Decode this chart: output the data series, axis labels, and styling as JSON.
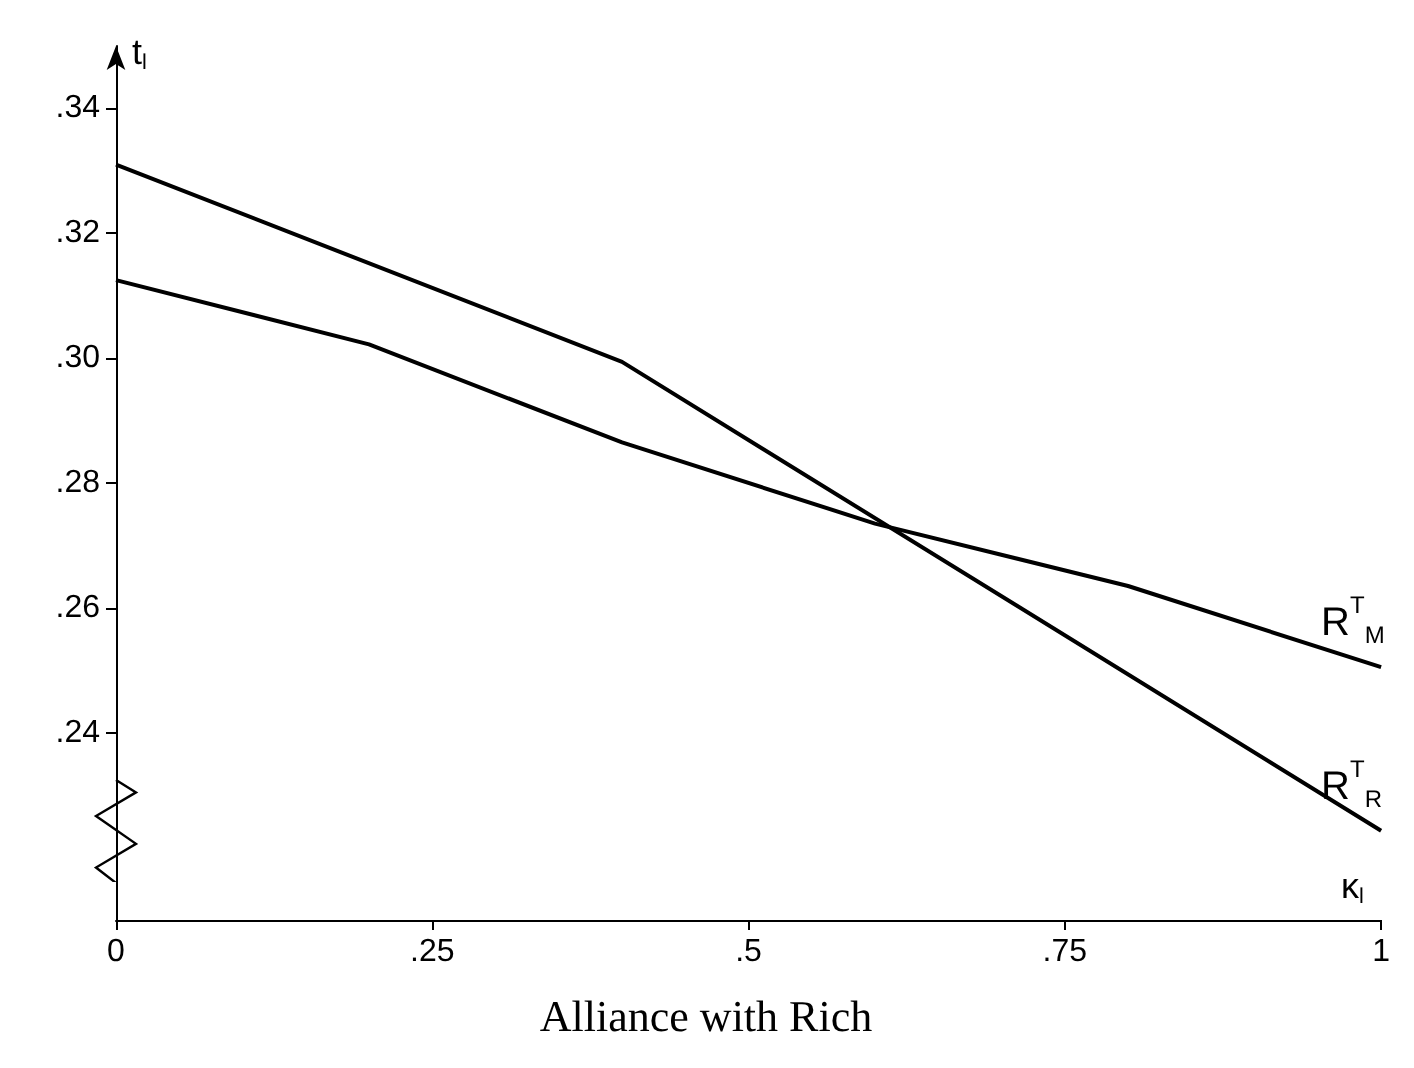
{
  "chart_data": {
    "type": "line",
    "title": "Alliance with Rich",
    "xlabel": "κ$_{l}$",
    "ylabel": "t$_{l}$",
    "xlim": [
      0,
      1
    ],
    "xticks": [
      0,
      {
        "value": 0.25,
        "label": ".25"
      },
      {
        "value": 0.5,
        "label": ".5"
      },
      {
        "value": 0.75,
        "label": ".75"
      },
      1
    ],
    "ylim": [
      0.21,
      0.35
    ],
    "yticks": [
      {
        "value": 0.24,
        "label": ".24"
      },
      {
        "value": 0.26,
        "label": ".26"
      },
      {
        "value": 0.28,
        "label": ".28"
      },
      {
        "value": 0.3,
        "label": ".30"
      },
      {
        "value": 0.32,
        "label": ".32"
      },
      {
        "value": 0.34,
        "label": ".34"
      }
    ],
    "series": [
      {
        "name": "R$^{T}$$_{M}$",
        "color": "#000000",
        "x": [
          0,
          0.2,
          0.4,
          0.6,
          0.8,
          1
        ],
        "values": [
          0.3125,
          0.3022,
          0.2865,
          0.2735,
          0.2635,
          0.2505
        ]
      },
      {
        "name": "R$^{T}$$_{R}$",
        "color": "#000000",
        "x": [
          0,
          0.4,
          1
        ],
        "values": [
          0.331,
          0.2994,
          0.2243
        ]
      }
    ],
    "grid": false,
    "legend": false,
    "marker": "none",
    "line_style": "solid"
  }
}
